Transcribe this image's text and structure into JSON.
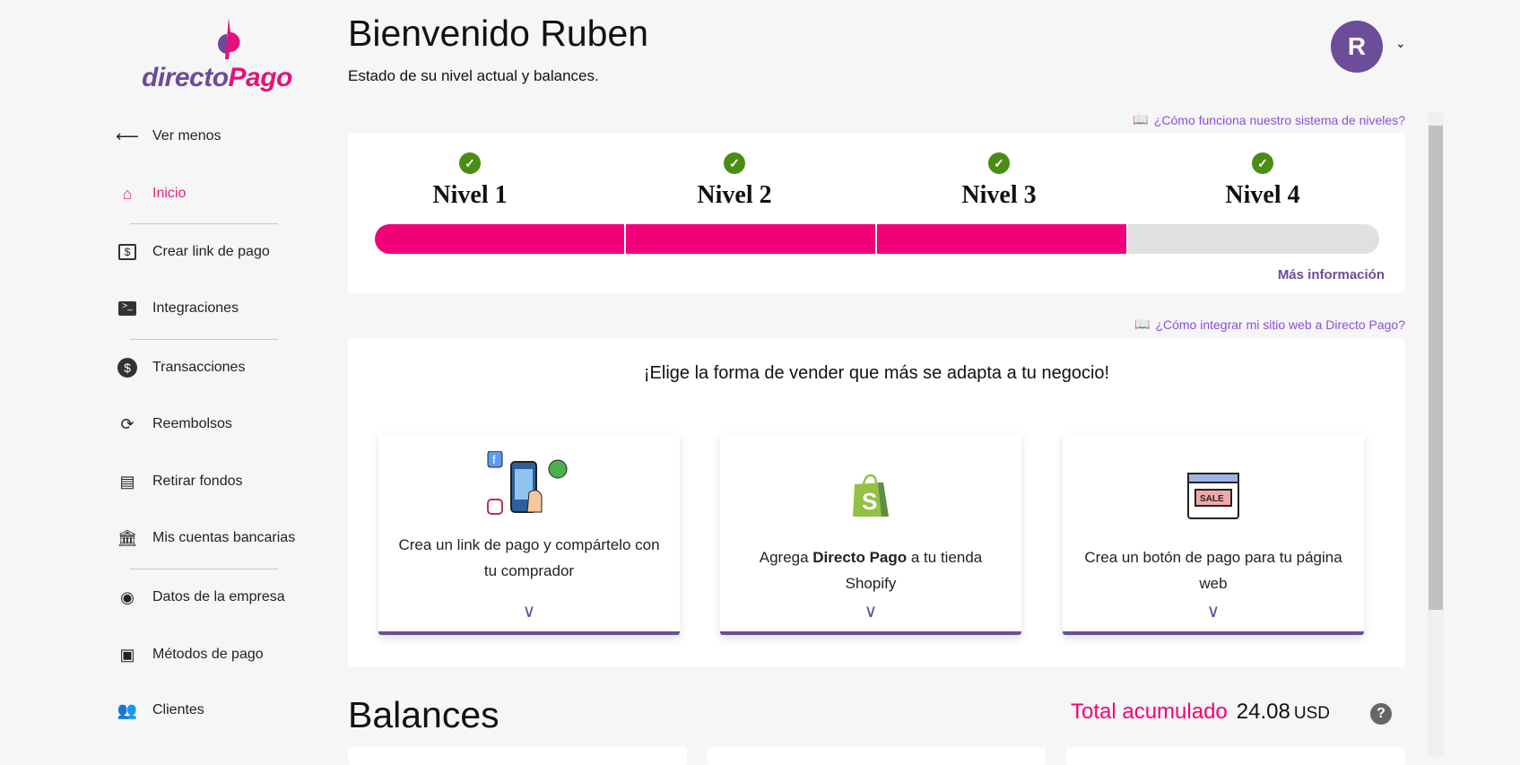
{
  "brand": {
    "part1": "directo",
    "part2": "Pago"
  },
  "sidebar": {
    "collapse": "Ver menos",
    "items": [
      {
        "label": "Inicio",
        "icon": "home-icon"
      },
      {
        "label": "Crear link de pago",
        "icon": "money-bill-icon"
      },
      {
        "label": "Integraciones",
        "icon": "terminal-icon"
      },
      {
        "label": "Transacciones",
        "icon": "dollar-circle-icon"
      },
      {
        "label": "Reembolsos",
        "icon": "refresh-icon"
      },
      {
        "label": "Retirar fondos",
        "icon": "receipt-icon"
      },
      {
        "label": "Mis cuentas bancarias",
        "icon": "bank-icon"
      },
      {
        "label": "Datos de la empresa",
        "icon": "user-circle-icon"
      },
      {
        "label": "Métodos de pago",
        "icon": "payment-icon"
      },
      {
        "label": "Clientes",
        "icon": "users-icon"
      }
    ]
  },
  "header": {
    "title": "Bienvenido Ruben",
    "subtitle": "Estado de su nivel actual y balances.",
    "avatar": "R"
  },
  "levels": {
    "help_link": "¿Cómo funciona nuestro sistema de niveles?",
    "items": [
      "Nivel 1",
      "Nivel 2",
      "Nivel 3",
      "Nivel 4"
    ],
    "completed": 3,
    "progress_percent": 75,
    "more": "Más información",
    "accent": "#f2007a"
  },
  "sell": {
    "help_link": "¿Cómo integrar mi sitio web a Directo Pago?",
    "heading": "¡Elige la forma de vender que más se adapta a tu negocio!",
    "options": [
      {
        "text": "Crea un link de pago y compártelo con tu comprador"
      },
      {
        "pre": "Agrega ",
        "bold": "Directo Pago",
        "post": " a tu tienda Shopify"
      },
      {
        "text": "Crea un botón de pago para tu página web",
        "sale": "SALE"
      }
    ]
  },
  "balances": {
    "title": "Balances",
    "total_label": "Total acumulado",
    "total_value": "24.08",
    "currency": "USD"
  }
}
